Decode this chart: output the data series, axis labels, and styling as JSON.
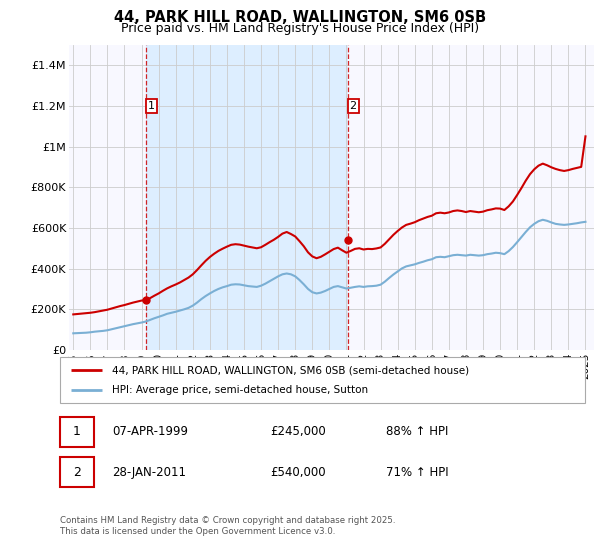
{
  "title_line1": "44, PARK HILL ROAD, WALLINGTON, SM6 0SB",
  "title_line2": "Price paid vs. HM Land Registry's House Price Index (HPI)",
  "legend_label1": "44, PARK HILL ROAD, WALLINGTON, SM6 0SB (semi-detached house)",
  "legend_label2": "HPI: Average price, semi-detached house, Sutton",
  "annotation1": {
    "num": "1",
    "date": "07-APR-1999",
    "price": "£245,000",
    "hpi": "88% ↑ HPI"
  },
  "annotation2": {
    "num": "2",
    "date": "28-JAN-2011",
    "price": "£540,000",
    "hpi": "71% ↑ HPI"
  },
  "footer": "Contains HM Land Registry data © Crown copyright and database right 2025.\nThis data is licensed under the Open Government Licence v3.0.",
  "price_color": "#cc0000",
  "hpi_color": "#7aafd4",
  "shade_color": "#ddeeff",
  "vline_color": "#cc0000",
  "grid_color": "#cccccc",
  "bg_color": "#f8f8ff",
  "ylim": [
    0,
    1500000
  ],
  "yticks": [
    0,
    200000,
    400000,
    600000,
    800000,
    1000000,
    1200000,
    1400000
  ],
  "ytick_labels": [
    "£0",
    "£200K",
    "£400K",
    "£600K",
    "£800K",
    "£1M",
    "£1.2M",
    "£1.4M"
  ],
  "hpi_data": {
    "dates": [
      1995.0,
      1995.25,
      1995.5,
      1995.75,
      1996.0,
      1996.25,
      1996.5,
      1996.75,
      1997.0,
      1997.25,
      1997.5,
      1997.75,
      1998.0,
      1998.25,
      1998.5,
      1998.75,
      1999.0,
      1999.25,
      1999.5,
      1999.75,
      2000.0,
      2000.25,
      2000.5,
      2000.75,
      2001.0,
      2001.25,
      2001.5,
      2001.75,
      2002.0,
      2002.25,
      2002.5,
      2002.75,
      2003.0,
      2003.25,
      2003.5,
      2003.75,
      2004.0,
      2004.25,
      2004.5,
      2004.75,
      2005.0,
      2005.25,
      2005.5,
      2005.75,
      2006.0,
      2006.25,
      2006.5,
      2006.75,
      2007.0,
      2007.25,
      2007.5,
      2007.75,
      2008.0,
      2008.25,
      2008.5,
      2008.75,
      2009.0,
      2009.25,
      2009.5,
      2009.75,
      2010.0,
      2010.25,
      2010.5,
      2010.75,
      2011.0,
      2011.25,
      2011.5,
      2011.75,
      2012.0,
      2012.25,
      2012.5,
      2012.75,
      2013.0,
      2013.25,
      2013.5,
      2013.75,
      2014.0,
      2014.25,
      2014.5,
      2014.75,
      2015.0,
      2015.25,
      2015.5,
      2015.75,
      2016.0,
      2016.25,
      2016.5,
      2016.75,
      2017.0,
      2017.25,
      2017.5,
      2017.75,
      2018.0,
      2018.25,
      2018.5,
      2018.75,
      2019.0,
      2019.25,
      2019.5,
      2019.75,
      2020.0,
      2020.25,
      2020.5,
      2020.75,
      2021.0,
      2021.25,
      2021.5,
      2021.75,
      2022.0,
      2022.25,
      2022.5,
      2022.75,
      2023.0,
      2023.25,
      2023.5,
      2023.75,
      2024.0,
      2024.25,
      2024.5,
      2024.75,
      2025.0
    ],
    "values": [
      82000,
      83000,
      84000,
      85000,
      87000,
      90000,
      92000,
      94000,
      97000,
      102000,
      107000,
      112000,
      117000,
      122000,
      127000,
      131000,
      135000,
      140000,
      148000,
      156000,
      163000,
      170000,
      178000,
      183000,
      188000,
      194000,
      200000,
      207000,
      218000,
      233000,
      250000,
      265000,
      278000,
      290000,
      300000,
      308000,
      314000,
      321000,
      323000,
      322000,
      318000,
      314000,
      312000,
      310000,
      316000,
      326000,
      338000,
      350000,
      362000,
      372000,
      376000,
      372000,
      362000,
      344000,
      323000,
      300000,
      284000,
      278000,
      282000,
      290000,
      300000,
      310000,
      314000,
      308000,
      302000,
      306000,
      310000,
      313000,
      310000,
      313000,
      314000,
      316000,
      321000,
      336000,
      354000,
      371000,
      386000,
      401000,
      411000,
      416000,
      421000,
      428000,
      434000,
      441000,
      446000,
      456000,
      458000,
      456000,
      461000,
      466000,
      468000,
      466000,
      464000,
      468000,
      466000,
      464000,
      466000,
      471000,
      474000,
      478000,
      476000,
      471000,
      486000,
      506000,
      530000,
      555000,
      580000,
      603000,
      620000,
      633000,
      640000,
      635000,
      627000,
      620000,
      617000,
      615000,
      617000,
      620000,
      623000,
      627000,
      630000
    ]
  },
  "price_data": {
    "dates": [
      1995.0,
      1995.25,
      1995.5,
      1995.75,
      1996.0,
      1996.25,
      1996.5,
      1996.75,
      1997.0,
      1997.25,
      1997.5,
      1997.75,
      1998.0,
      1998.25,
      1998.5,
      1998.75,
      1999.0,
      1999.25,
      1999.5,
      1999.75,
      2000.0,
      2000.25,
      2000.5,
      2000.75,
      2001.0,
      2001.25,
      2001.5,
      2001.75,
      2002.0,
      2002.25,
      2002.5,
      2002.75,
      2003.0,
      2003.25,
      2003.5,
      2003.75,
      2004.0,
      2004.25,
      2004.5,
      2004.75,
      2005.0,
      2005.25,
      2005.5,
      2005.75,
      2006.0,
      2006.25,
      2006.5,
      2006.75,
      2007.0,
      2007.25,
      2007.5,
      2007.75,
      2008.0,
      2008.25,
      2008.5,
      2008.75,
      2009.0,
      2009.25,
      2009.5,
      2009.75,
      2010.0,
      2010.25,
      2010.5,
      2010.75,
      2011.0,
      2011.25,
      2011.5,
      2011.75,
      2012.0,
      2012.25,
      2012.5,
      2012.75,
      2013.0,
      2013.25,
      2013.5,
      2013.75,
      2014.0,
      2014.25,
      2014.5,
      2014.75,
      2015.0,
      2015.25,
      2015.5,
      2015.75,
      2016.0,
      2016.25,
      2016.5,
      2016.75,
      2017.0,
      2017.25,
      2017.5,
      2017.75,
      2018.0,
      2018.25,
      2018.5,
      2018.75,
      2019.0,
      2019.25,
      2019.5,
      2019.75,
      2020.0,
      2020.25,
      2020.5,
      2020.75,
      2021.0,
      2021.25,
      2021.5,
      2021.75,
      2022.0,
      2022.25,
      2022.5,
      2022.75,
      2023.0,
      2023.25,
      2023.5,
      2023.75,
      2024.0,
      2024.25,
      2024.5,
      2024.75,
      2025.0
    ],
    "values": [
      175000,
      177000,
      179000,
      181000,
      183000,
      186000,
      190000,
      194000,
      198000,
      204000,
      210000,
      216000,
      221000,
      227000,
      233000,
      238000,
      243000,
      245000,
      255000,
      267000,
      278000,
      291000,
      303000,
      313000,
      322000,
      332000,
      344000,
      356000,
      372000,
      393000,
      416000,
      438000,
      457000,
      473000,
      487000,
      498000,
      508000,
      517000,
      520000,
      518000,
      513000,
      508000,
      504000,
      500000,
      505000,
      517000,
      530000,
      542000,
      556000,
      572000,
      580000,
      570000,
      558000,
      535000,
      510000,
      480000,
      460000,
      451000,
      458000,
      470000,
      483000,
      496000,
      503000,
      490000,
      478000,
      487000,
      497000,
      500000,
      494000,
      497000,
      496000,
      499000,
      504000,
      522000,
      544000,
      566000,
      585000,
      602000,
      615000,
      621000,
      628000,
      638000,
      646000,
      654000,
      660000,
      672000,
      675000,
      672000,
      676000,
      683000,
      686000,
      683000,
      678000,
      683000,
      680000,
      677000,
      680000,
      687000,
      691000,
      696000,
      695000,
      688000,
      706000,
      730000,
      762000,
      796000,
      832000,
      864000,
      888000,
      906000,
      916000,
      908000,
      898000,
      890000,
      884000,
      880000,
      884000,
      890000,
      895000,
      900000,
      1050000
    ]
  },
  "purchase1_date": 1999.27,
  "purchase1_price": 245000,
  "purchase2_date": 2011.08,
  "purchase2_price": 540000,
  "xlim": [
    1994.75,
    2025.5
  ],
  "xticks": [
    1995,
    1996,
    1997,
    1998,
    1999,
    2000,
    2001,
    2002,
    2003,
    2004,
    2005,
    2006,
    2007,
    2008,
    2009,
    2010,
    2011,
    2012,
    2013,
    2014,
    2015,
    2016,
    2017,
    2018,
    2019,
    2020,
    2021,
    2022,
    2023,
    2024,
    2025
  ]
}
